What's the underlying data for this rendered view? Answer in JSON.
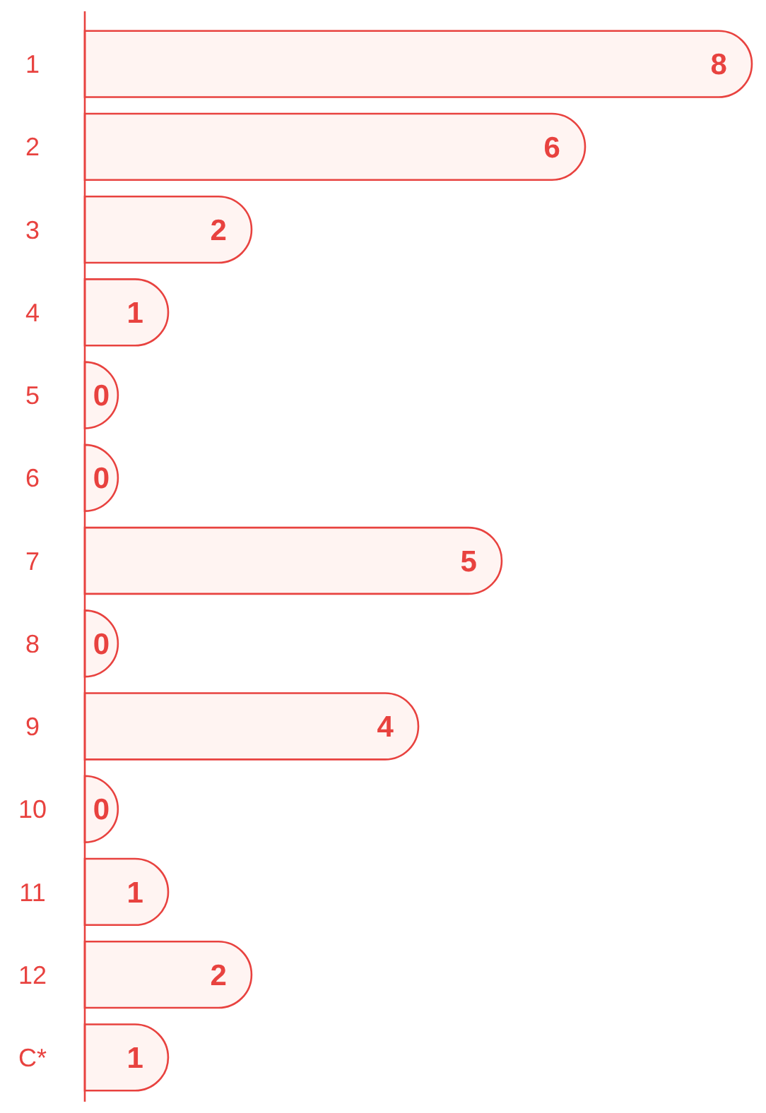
{
  "chart_data": {
    "type": "bar",
    "orientation": "horizontal",
    "categories": [
      "1",
      "2",
      "3",
      "4",
      "5",
      "6",
      "7",
      "8",
      "9",
      "10",
      "11",
      "12",
      "C*"
    ],
    "values": [
      8,
      6,
      2,
      1,
      0,
      0,
      5,
      0,
      4,
      0,
      1,
      2,
      1
    ],
    "color": "#e8423f",
    "data_labels": true
  }
}
